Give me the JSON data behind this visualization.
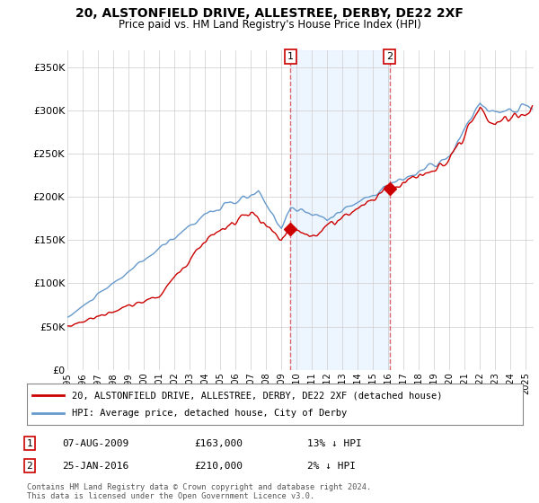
{
  "title": "20, ALSTONFIELD DRIVE, ALLESTREE, DERBY, DE22 2XF",
  "subtitle": "Price paid vs. HM Land Registry's House Price Index (HPI)",
  "ylabel_ticks": [
    "£0",
    "£50K",
    "£100K",
    "£150K",
    "£200K",
    "£250K",
    "£300K",
    "£350K"
  ],
  "ytick_values": [
    0,
    50000,
    100000,
    150000,
    200000,
    250000,
    300000,
    350000
  ],
  "ylim": [
    0,
    370000
  ],
  "xlim_start": 1995.3,
  "xlim_end": 2025.5,
  "xtick_years": [
    1995,
    1996,
    1997,
    1998,
    1999,
    2000,
    2001,
    2002,
    2003,
    2004,
    2005,
    2006,
    2007,
    2008,
    2009,
    2010,
    2011,
    2012,
    2013,
    2014,
    2015,
    2016,
    2017,
    2018,
    2019,
    2020,
    2021,
    2022,
    2023,
    2024,
    2025
  ],
  "purchase1_x": 2009.6,
  "purchase1_y": 163000,
  "purchase1_label": "1",
  "purchase1_date": "07-AUG-2009",
  "purchase1_price": "£163,000",
  "purchase1_hpi": "13% ↓ HPI",
  "purchase2_x": 2016.07,
  "purchase2_y": 210000,
  "purchase2_label": "2",
  "purchase2_date": "25-JAN-2016",
  "purchase2_price": "£210,000",
  "purchase2_hpi": "2% ↓ HPI",
  "legend_line1": "20, ALSTONFIELD DRIVE, ALLESTREE, DERBY, DE22 2XF (detached house)",
  "legend_line2": "HPI: Average price, detached house, City of Derby",
  "footer": "Contains HM Land Registry data © Crown copyright and database right 2024.\nThis data is licensed under the Open Government Licence v3.0.",
  "red_color": "#cc0000",
  "blue_color": "#6699cc",
  "blue_fill": "#ddeeff",
  "grid_color": "#cccccc",
  "bg_color": "#ffffff",
  "vline_color": "#dd4444"
}
